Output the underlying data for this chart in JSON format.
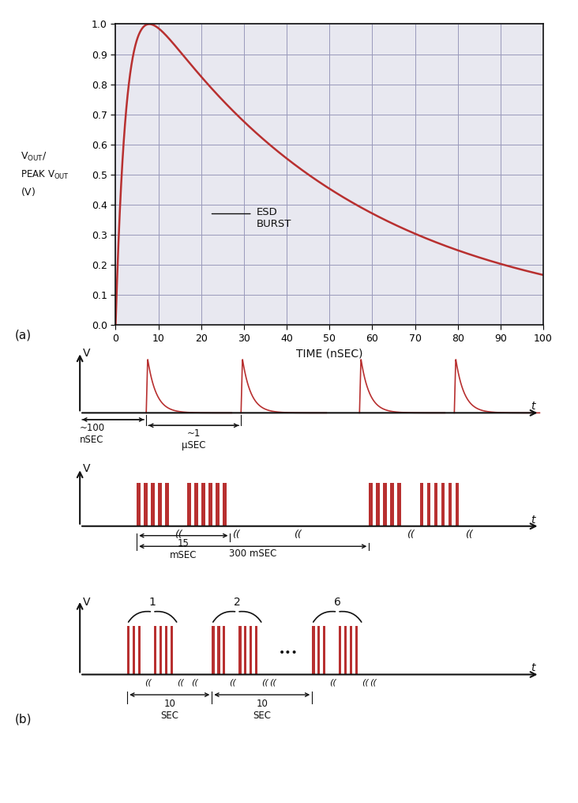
{
  "bg_color": "#e8e8f0",
  "line_color": "#b83030",
  "axis_color": "#111111",
  "grid_color": "#9999bb",
  "text_color": "#111111",
  "esd_burst_label": "ESD\nBURST",
  "xlabel": "TIME (nSEC)",
  "yticks": [
    0,
    0.1,
    0.2,
    0.3,
    0.4,
    0.5,
    0.6,
    0.7,
    0.8,
    0.9,
    1
  ],
  "xticks": [
    0,
    10,
    20,
    30,
    40,
    50,
    60,
    70,
    80,
    90,
    100
  ],
  "label_a": "(a)",
  "label_b": "(b)",
  "pulse_color": "#b83030",
  "squiggle": "«"
}
